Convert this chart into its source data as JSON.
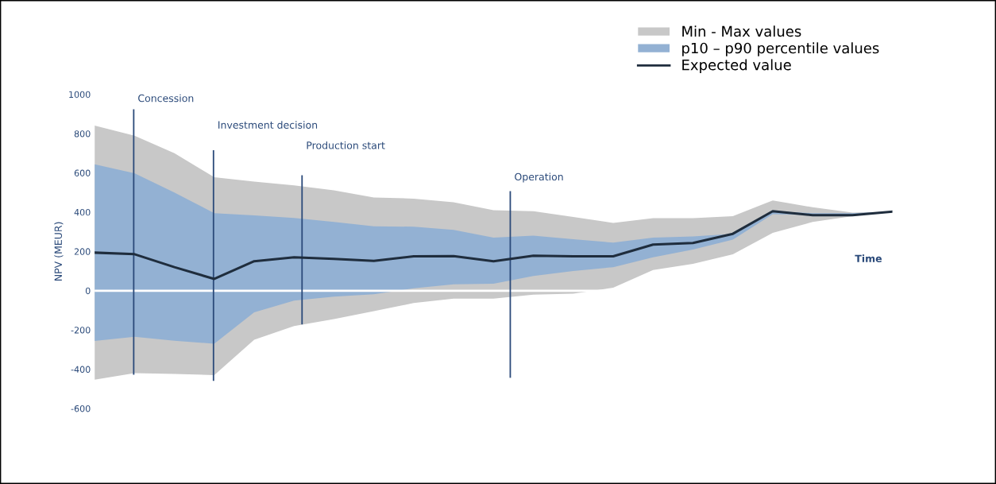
{
  "chart_data": {
    "type": "line",
    "xlabel": "Time",
    "ylabel": "NPV (MEUR)",
    "ylim": [
      -600,
      1000
    ],
    "yticks": [
      -600,
      -400,
      -200,
      0,
      200,
      400,
      600,
      800,
      1000
    ],
    "tick_labels": "y",
    "grid": false,
    "legend": "top right",
    "marker": "none",
    "line_style": "solid",
    "categories": [
      null,
      null,
      null,
      null,
      null,
      null,
      null,
      null,
      null,
      null,
      null,
      null,
      null,
      null,
      null,
      null,
      null,
      null,
      null,
      null,
      null
    ],
    "series": [
      {
        "name": "Min - Max values",
        "type": "area",
        "color": "#c8c8c8",
        "values": [
          null,
          null,
          null,
          null,
          null,
          null,
          null,
          null,
          null,
          null,
          null,
          null,
          null,
          null,
          null,
          null,
          null,
          null,
          null,
          null,
          null
        ],
        "lower": [
          -453,
          -420,
          -424,
          -430,
          -250,
          -180,
          -145,
          -104,
          -63,
          -40,
          -40,
          -20,
          -15,
          15,
          105,
          137,
          185,
          295,
          350,
          380,
          403
        ],
        "upper": [
          841,
          790,
          700,
          578,
          556,
          537,
          511,
          475,
          469,
          450,
          410,
          405,
          376,
          345,
          370,
          370,
          380,
          460,
          425,
          398,
          403
        ]
      },
      {
        "name": "p10 – p90 percentile values",
        "type": "area",
        "color": "#93b1d3",
        "values": [
          null,
          null,
          null,
          null,
          null,
          null,
          null,
          null,
          null,
          null,
          null,
          null,
          null,
          null,
          null,
          null,
          null,
          null,
          null,
          null,
          null
        ],
        "lower": [
          -256,
          -235,
          -255,
          -270,
          -110,
          -50,
          -30,
          -18,
          12,
          33,
          36,
          75,
          100,
          120,
          170,
          210,
          260,
          390,
          385,
          385,
          403
        ],
        "upper": [
          644,
          598,
          500,
          395,
          384,
          371,
          350,
          328,
          326,
          310,
          270,
          280,
          262,
          245,
          270,
          276,
          290,
          405,
          395,
          395,
          403
        ]
      },
      {
        "name": "Expected value",
        "color": "#1f2d3d",
        "values": [
          194,
          186,
          120,
          60,
          150,
          170,
          162,
          152,
          175,
          176,
          150,
          178,
          175,
          175,
          235,
          243,
          290,
          405,
          385,
          385,
          403
        ]
      }
    ],
    "ref_lines": [
      {
        "axis": "y",
        "value": 0,
        "color": "#ffffff"
      }
    ],
    "annotations": [
      "Concession",
      "Investment decision",
      "Production start",
      "Operation"
    ]
  }
}
